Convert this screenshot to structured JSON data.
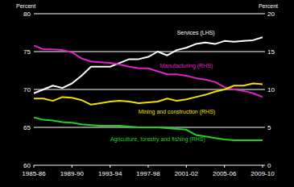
{
  "chart_data": {
    "type": "line",
    "y_label": "Percent",
    "y2_label": "Percent",
    "categories": [
      "1985-86",
      null,
      null,
      null,
      "1989-90",
      null,
      null,
      null,
      "1993-94",
      null,
      null,
      null,
      "1997-98",
      null,
      null,
      null,
      "2001-02",
      null,
      null,
      null,
      "2005-06",
      null,
      null,
      null,
      "2009-10"
    ],
    "series": [
      {
        "name": "Services (LHS)",
        "color": "#ffffff",
        "values": [
          69.5,
          70.0,
          70.5,
          70.2,
          70.8,
          71.8,
          73.0,
          73.0,
          73.0,
          73.5,
          74.0,
          74.0,
          74.3,
          75.0,
          74.5,
          75.2,
          75.5,
          76.0,
          76.2,
          76.0,
          76.4,
          76.3,
          76.4,
          76.5,
          76.9
        ]
      },
      {
        "name": "Manufacturing (RHS)",
        "color": "#e020c8",
        "axis": "y2",
        "values": [
          15.8,
          15.3,
          15.3,
          15.2,
          14.9,
          14.1,
          13.7,
          13.6,
          13.5,
          13.3,
          13.0,
          12.8,
          12.8,
          12.4,
          12.0,
          12.0,
          11.8,
          11.5,
          11.3,
          11.0,
          10.3,
          10.0,
          9.8,
          9.5,
          9.0
        ]
      },
      {
        "name": "Mining and construction (RHS)",
        "color": "#f0e000",
        "axis": "y2",
        "values": [
          8.8,
          8.8,
          8.5,
          9.0,
          8.9,
          8.6,
          8.0,
          8.2,
          8.4,
          8.5,
          8.4,
          8.2,
          8.3,
          8.4,
          8.8,
          8.5,
          8.7,
          9.0,
          9.3,
          9.7,
          10.0,
          10.5,
          10.5,
          10.8,
          10.7
        ]
      },
      {
        "name": "Agriculture, forestry and fishing (RHS)",
        "color": "#22d022",
        "axis": "y2",
        "values": [
          6.3,
          6.0,
          5.9,
          5.7,
          5.6,
          5.4,
          5.3,
          5.2,
          5.2,
          5.2,
          5.1,
          5.0,
          5.0,
          5.0,
          4.9,
          4.8,
          4.7,
          4.0,
          3.8,
          3.6,
          3.4,
          3.3,
          3.3,
          3.3,
          3.3
        ]
      }
    ],
    "ylim": [
      60,
      80
    ],
    "yticks": [
      60,
      65,
      70,
      75,
      80
    ],
    "y2lim": [
      0,
      20
    ],
    "y2ticks": [
      0,
      5,
      10,
      15,
      20
    ],
    "grid": true
  }
}
